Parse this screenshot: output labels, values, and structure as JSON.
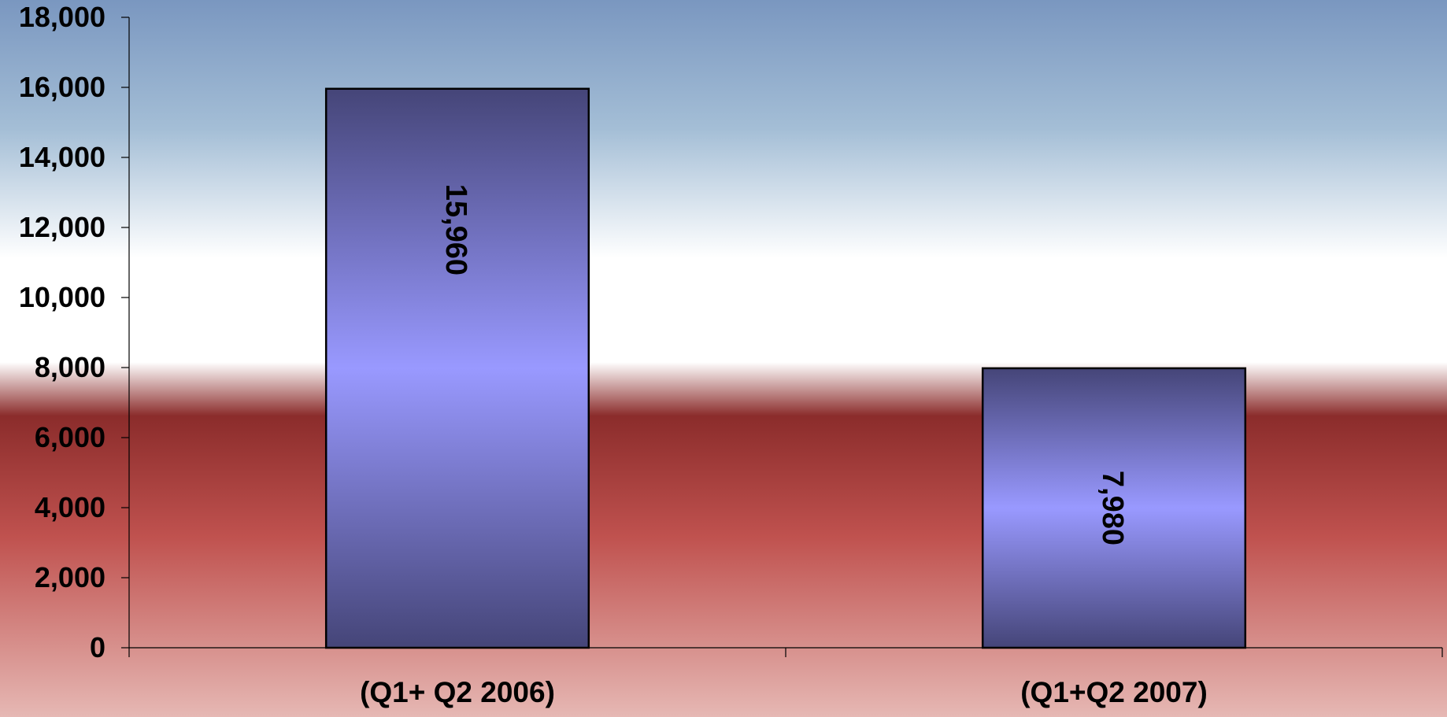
{
  "chart_data": {
    "type": "bar",
    "title": "",
    "xlabel": "",
    "ylabel": "",
    "categories": [
      "(Q1+ Q2 2006)",
      "(Q1+Q2 2007)"
    ],
    "values": [
      15960,
      7980
    ],
    "data_labels": [
      "15,960",
      "7,980"
    ],
    "ylim": [
      0,
      18000
    ],
    "yticks": [
      0,
      2000,
      4000,
      6000,
      8000,
      10000,
      12000,
      14000,
      16000,
      18000
    ],
    "ytick_labels": [
      "0",
      "2,000",
      "4,000",
      "6,000",
      "8,000",
      "10,000",
      "12,000",
      "14,000",
      "16,000",
      "18,000"
    ],
    "grid": false,
    "legend": "none",
    "data_label_orientation": "vertical",
    "colors": {
      "bar_center": "#9999ff",
      "bar_edge": "#454578",
      "bar_outline": "#000000",
      "background_top": "#7a97c0",
      "background_mid": "#ffffff",
      "background_band": "#8b2c2b",
      "background_bottom": "#e6b8b4"
    }
  }
}
